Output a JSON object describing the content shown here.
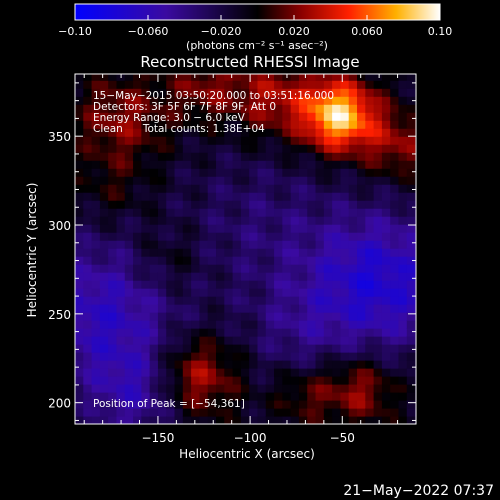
{
  "chart_data": {
    "type": "heatmap",
    "title": "Reconstructed RHESSI Image",
    "xlabel": "Heliocentric X (arcsec)",
    "ylabel": "Heliocentric Y (arcsec)",
    "xlim": [
      -195,
      -10
    ],
    "ylim": [
      188,
      385
    ],
    "xticks": [
      -150,
      -100,
      -50
    ],
    "xtick_labels": [
      "−150",
      "−100",
      "−50"
    ],
    "yticks": [
      200,
      250,
      300,
      350
    ],
    "ytick_labels": [
      "200",
      "250",
      "300",
      "350"
    ],
    "colorbar": {
      "range": [
        -0.1,
        0.1
      ],
      "ticks": [
        -0.1,
        -0.06,
        -0.02,
        0.02,
        0.06,
        0.1
      ],
      "tick_labels": [
        "−0.10",
        "−0.060",
        "−0.020",
        "0.020",
        "0.060",
        "0.10"
      ],
      "unit_label": "(photons cm⁻² s⁻¹ asec⁻²)",
      "colormap": [
        "#0000ff",
        "#000000",
        "#ff0000",
        "#ffff00",
        "#ffffff"
      ]
    },
    "annotations": [
      "15−May−2015 03:50:20.000 to 03:51:16.000",
      "Detectors: 3F 5F 6F 7F 8F 9F, Att 0",
      "Energy Range: 3.0 − 6.0 keV",
      "Clean      Total counts: 1.38E+04"
    ],
    "peak_label": "Position of Peak = [−54,361]",
    "peak": [
      -54,
      361
    ],
    "hotspots": [
      {
        "x": -52,
        "y": 362,
        "v": 0.1,
        "r": 14
      },
      {
        "x": -88,
        "y": 372,
        "v": 0.04,
        "r": 16
      },
      {
        "x": -170,
        "y": 360,
        "v": 0.035,
        "r": 18
      },
      {
        "x": -125,
        "y": 378,
        "v": 0.03,
        "r": 14
      },
      {
        "x": -20,
        "y": 345,
        "v": 0.035,
        "r": 14
      },
      {
        "x": -130,
        "y": 215,
        "v": 0.05,
        "r": 16
      },
      {
        "x": -40,
        "y": 208,
        "v": 0.04,
        "r": 14
      },
      {
        "x": -70,
        "y": 205,
        "v": 0.025,
        "r": 12
      },
      {
        "x": -145,
        "y": 280,
        "v": 0.02,
        "r": 14
      },
      {
        "x": -175,
        "y": 320,
        "v": 0.015,
        "r": 14
      }
    ],
    "coldspots": [
      {
        "x": -30,
        "y": 268,
        "v": -0.06,
        "r": 28
      },
      {
        "x": -180,
        "y": 250,
        "v": -0.05,
        "r": 30
      },
      {
        "x": -95,
        "y": 300,
        "v": -0.02,
        "r": 30
      },
      {
        "x": -75,
        "y": 240,
        "v": -0.02,
        "r": 20
      },
      {
        "x": -160,
        "y": 205,
        "v": -0.035,
        "r": 18
      }
    ]
  },
  "footer_date": "21−May−2022 07:37"
}
